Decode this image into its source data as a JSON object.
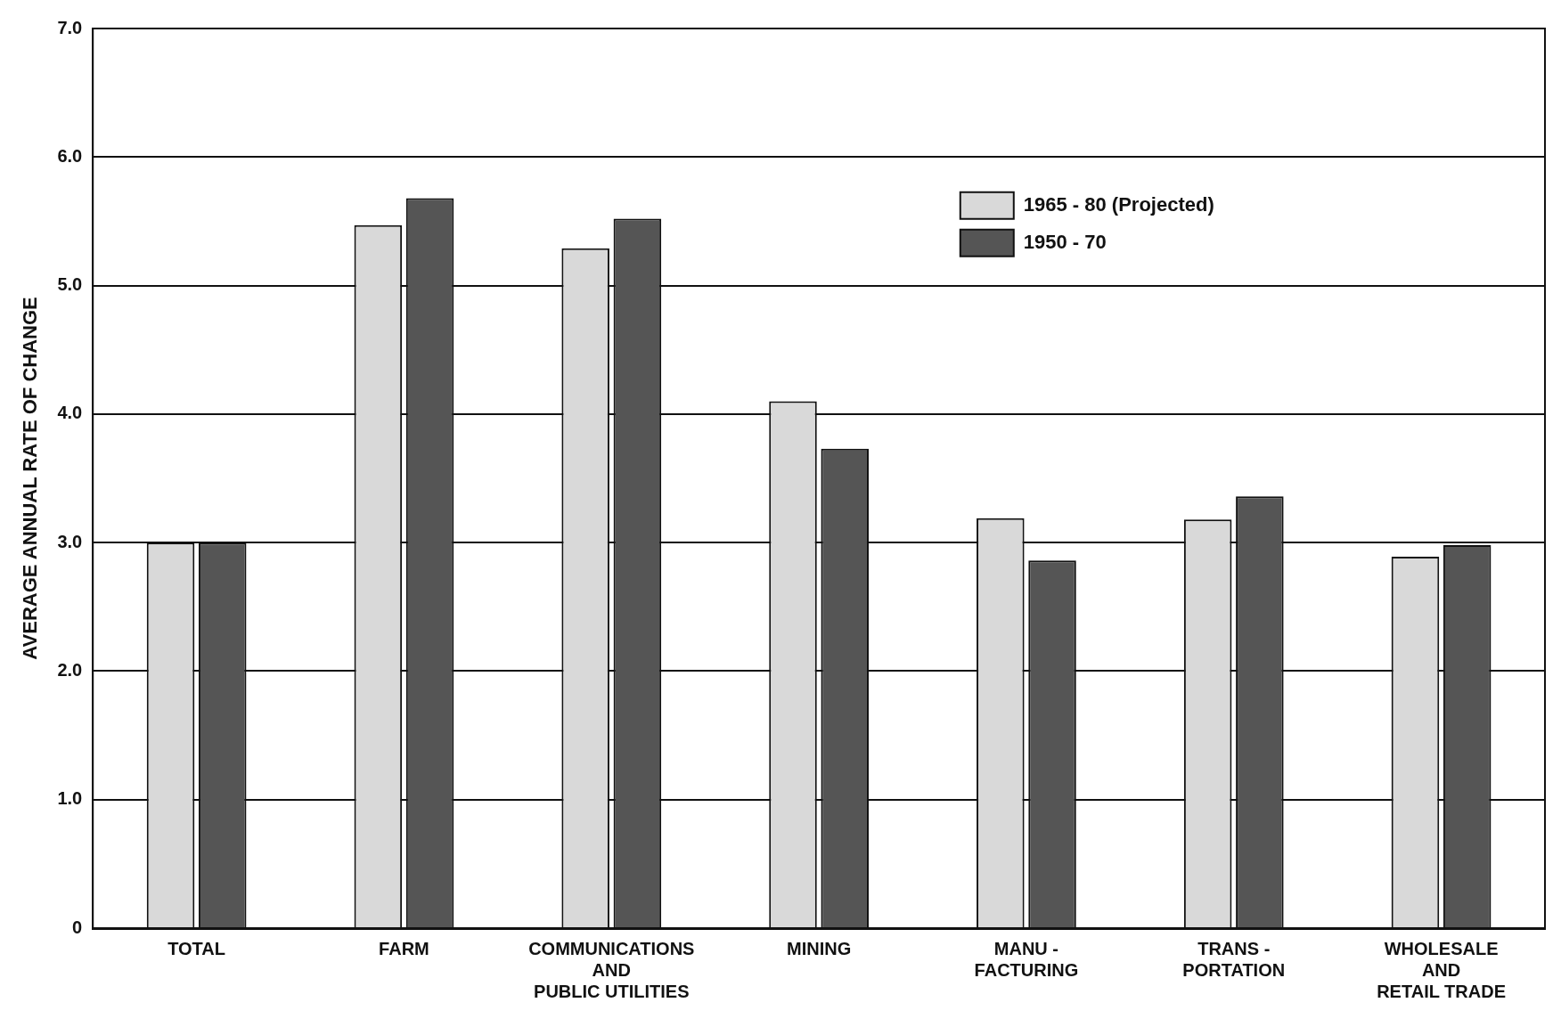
{
  "chart_data": {
    "type": "bar",
    "ylabel": "AVERAGE ANNUAL RATE OF CHANGE",
    "categories": [
      "TOTAL",
      "FARM",
      "COMMUNICATIONS\nAND\nPUBLIC UTILITIES",
      "MINING",
      "MANU -\nFACTURING",
      "TRANS -\nPORTATION",
      "WHOLESALE\nAND\nRETAIL TRADE"
    ],
    "series": [
      {
        "name": "1965 - 80 (Projected)",
        "color": "#d9d9d9",
        "values": [
          3.0,
          5.47,
          5.29,
          4.1,
          3.19,
          3.18,
          2.89
        ]
      },
      {
        "name": "1950 - 70",
        "color": "#555555",
        "values": [
          3.0,
          5.68,
          5.52,
          3.73,
          2.86,
          3.36,
          2.98
        ]
      }
    ],
    "ylim": [
      0,
      7
    ],
    "yticks": [
      {
        "value": 0,
        "label": "0"
      },
      {
        "value": 1,
        "label": "1.0"
      },
      {
        "value": 2,
        "label": "2.0"
      },
      {
        "value": 3,
        "label": "3.0"
      },
      {
        "value": 4,
        "label": "4.0"
      },
      {
        "value": 5,
        "label": "5.0"
      },
      {
        "value": 6,
        "label": "6.0"
      },
      {
        "value": 7,
        "label": "7.0"
      }
    ],
    "grid": "y",
    "legend": "top right"
  }
}
